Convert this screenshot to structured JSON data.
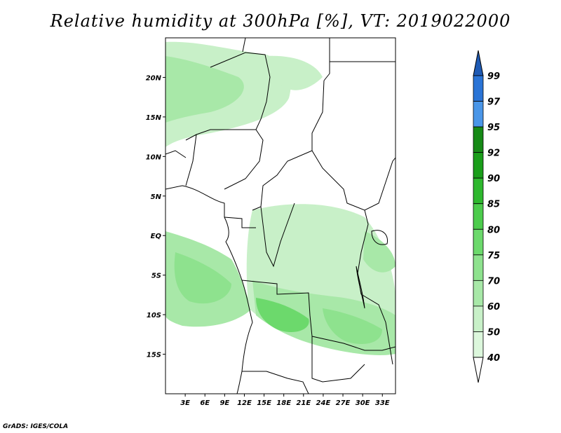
{
  "title": "Relative humidity at 300hPa [%], VT: 2019022000",
  "credit": "GrADS: IGES/COLA",
  "map": {
    "lon_range": [
      0,
      35
    ],
    "lat_range": [
      -20,
      25
    ],
    "lon_ticks": [
      {
        "value": 3,
        "label": "3E"
      },
      {
        "value": 6,
        "label": "6E"
      },
      {
        "value": 9,
        "label": "9E"
      },
      {
        "value": 12,
        "label": "12E"
      },
      {
        "value": 15,
        "label": "15E"
      },
      {
        "value": 18,
        "label": "18E"
      },
      {
        "value": 21,
        "label": "21E"
      },
      {
        "value": 24,
        "label": "24E"
      },
      {
        "value": 27,
        "label": "27E"
      },
      {
        "value": 30,
        "label": "30E"
      },
      {
        "value": 33,
        "label": "33E"
      }
    ],
    "lat_ticks": [
      {
        "value": 20,
        "label": "20N"
      },
      {
        "value": 15,
        "label": "15N"
      },
      {
        "value": 10,
        "label": "10N"
      },
      {
        "value": 5,
        "label": "5N"
      },
      {
        "value": 0,
        "label": "EQ"
      },
      {
        "value": -5,
        "label": "5S"
      },
      {
        "value": -10,
        "label": "10S"
      },
      {
        "value": -15,
        "label": "15S"
      }
    ]
  },
  "colorbar": {
    "levels": [
      {
        "label": "40",
        "color": "#f0fff0"
      },
      {
        "label": "50",
        "color": "#dcf7dc"
      },
      {
        "label": "60",
        "color": "#c8f0c8"
      },
      {
        "label": "70",
        "color": "#a8e8a8"
      },
      {
        "label": "75",
        "color": "#8ee28e"
      },
      {
        "label": "80",
        "color": "#6cd96c"
      },
      {
        "label": "85",
        "color": "#4ccc4c"
      },
      {
        "label": "90",
        "color": "#2eb82e"
      },
      {
        "label": "92",
        "color": "#1a9e1a"
      },
      {
        "label": "95",
        "color": "#168a16"
      },
      {
        "label": "97",
        "color": "#4a96e8"
      },
      {
        "label": "99",
        "color": "#2a74d6"
      }
    ],
    "top_color": "#1e5ab4",
    "bottom_color": "#ffffff"
  }
}
